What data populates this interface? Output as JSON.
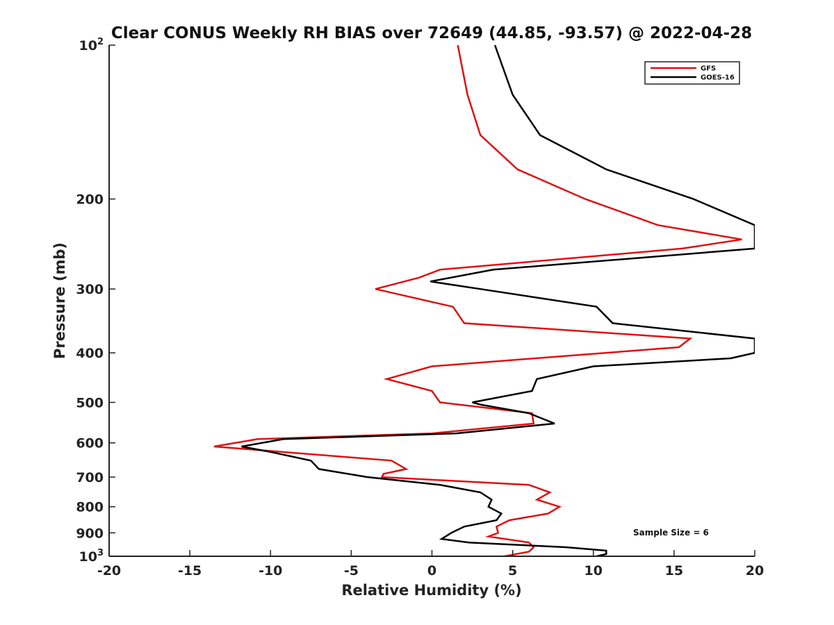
{
  "chart_data": {
    "type": "line",
    "title": "Clear CONUS Weekly RH BIAS over 72649 (44.85, -93.57) @ 2022-04-28",
    "xlabel": "Relative Humidity (%)",
    "ylabel": "Pressure (mb)",
    "xlim": [
      -20,
      20
    ],
    "ylim": [
      100,
      1000
    ],
    "y_scale": "log",
    "y_reversed": true,
    "x_ticks": [
      "-20",
      "-15",
      "-10",
      "-5",
      "0",
      "5",
      "10",
      "15",
      "20"
    ],
    "y_ticks": [
      {
        "value": 100,
        "label": "10",
        "sup": "2"
      },
      {
        "value": 200,
        "label": "200",
        "sup": ""
      },
      {
        "value": 300,
        "label": "300",
        "sup": ""
      },
      {
        "value": 400,
        "label": "400",
        "sup": ""
      },
      {
        "value": 500,
        "label": "500",
        "sup": ""
      },
      {
        "value": 600,
        "label": "600",
        "sup": ""
      },
      {
        "value": 700,
        "label": "700",
        "sup": ""
      },
      {
        "value": 800,
        "label": "800",
        "sup": ""
      },
      {
        "value": 900,
        "label": "900",
        "sup": ""
      },
      {
        "value": 1000,
        "label": "10",
        "sup": "3"
      }
    ],
    "grid": false,
    "legend_position": "top-right",
    "series": [
      {
        "name": "GFS",
        "color": "#e01010",
        "points": [
          [
            1.6,
            100
          ],
          [
            2.2,
            125
          ],
          [
            3.0,
            150
          ],
          [
            5.3,
            175
          ],
          [
            9.5,
            200
          ],
          [
            14.0,
            225
          ],
          [
            19.2,
            240
          ],
          [
            15.5,
            250
          ],
          [
            0.5,
            275
          ],
          [
            -0.8,
            285
          ],
          [
            -3.5,
            300
          ],
          [
            1.3,
            325
          ],
          [
            2.0,
            350
          ],
          [
            16.0,
            375
          ],
          [
            15.3,
            390
          ],
          [
            0.0,
            425
          ],
          [
            -2.8,
            450
          ],
          [
            0.0,
            475
          ],
          [
            0.5,
            500
          ],
          [
            6.2,
            525
          ],
          [
            6.3,
            550
          ],
          [
            0.0,
            575
          ],
          [
            -10.8,
            590
          ],
          [
            -13.5,
            610
          ],
          [
            -2.5,
            650
          ],
          [
            -1.6,
            675
          ],
          [
            -3.0,
            690
          ],
          [
            -3.1,
            700
          ],
          [
            6.0,
            725
          ],
          [
            7.3,
            750
          ],
          [
            6.5,
            775
          ],
          [
            7.9,
            800
          ],
          [
            7.2,
            825
          ],
          [
            4.8,
            850
          ],
          [
            4.0,
            875
          ],
          [
            4.1,
            900
          ],
          [
            3.5,
            915
          ],
          [
            6.0,
            940
          ],
          [
            6.3,
            960
          ],
          [
            6.0,
            980
          ],
          [
            4.5,
            1000
          ]
        ]
      },
      {
        "name": "GOES-16",
        "color": "#000000",
        "points": [
          [
            3.9,
            100
          ],
          [
            5.0,
            125
          ],
          [
            6.7,
            150
          ],
          [
            10.8,
            175
          ],
          [
            16.2,
            200
          ],
          [
            20.0,
            225
          ],
          [
            20.0,
            250
          ],
          [
            3.8,
            275
          ],
          [
            -0.1,
            290
          ],
          [
            3.0,
            300
          ],
          [
            10.2,
            325
          ],
          [
            11.2,
            350
          ],
          [
            20.0,
            375
          ],
          [
            20.0,
            400
          ],
          [
            18.5,
            410
          ],
          [
            10.0,
            425
          ],
          [
            6.5,
            450
          ],
          [
            6.2,
            475
          ],
          [
            2.5,
            500
          ],
          [
            3.0,
            505
          ],
          [
            6.0,
            525
          ],
          [
            7.6,
            550
          ],
          [
            1.5,
            575
          ],
          [
            -9.2,
            590
          ],
          [
            -11.8,
            610
          ],
          [
            -10.0,
            625
          ],
          [
            -7.5,
            650
          ],
          [
            -7.0,
            675
          ],
          [
            -4.0,
            700
          ],
          [
            0.5,
            725
          ],
          [
            3.0,
            750
          ],
          [
            3.7,
            775
          ],
          [
            3.5,
            800
          ],
          [
            4.3,
            825
          ],
          [
            4.0,
            850
          ],
          [
            2.0,
            875
          ],
          [
            1.2,
            900
          ],
          [
            0.6,
            925
          ],
          [
            2.3,
            940
          ],
          [
            8.3,
            960
          ],
          [
            10.8,
            975
          ],
          [
            10.8,
            990
          ],
          [
            10.2,
            1000
          ]
        ]
      }
    ],
    "annotation": "Sample Size = 6"
  }
}
